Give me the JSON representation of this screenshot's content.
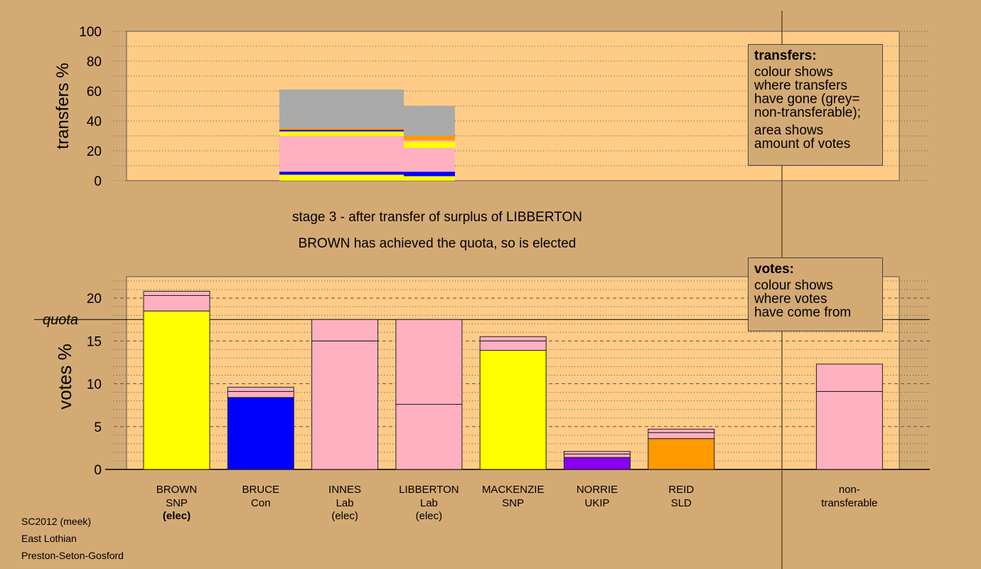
{
  "chart_data": [
    {
      "type": "bar",
      "subtype": "stacked-transfers",
      "ylabel": "transfers %",
      "ylim": [
        0,
        100
      ],
      "yticks": [
        0,
        20,
        40,
        60,
        80,
        100
      ],
      "colors": {
        "SNP": "#ffff00",
        "Con": "#0000ff",
        "Lab": "#ffb0c0",
        "UKIP": "#8800ee",
        "SLD": "#ff9900",
        "non-transferable": "#aaaaaa"
      },
      "blocks": [
        {
          "segments": [
            {
              "party": "SNP",
              "value": 4
            },
            {
              "party": "Con",
              "value": 2
            },
            {
              "party": "Lab",
              "value": 24
            },
            {
              "party": "SNP",
              "value": 3
            },
            {
              "party": "Con",
              "value": 1
            },
            {
              "party": "SLD",
              "value": 1
            },
            {
              "party": "non-transferable",
              "value": 26
            }
          ]
        },
        {
          "segments": [
            {
              "party": "SNP",
              "value": 3
            },
            {
              "party": "Con",
              "value": 3
            },
            {
              "party": "Lab",
              "value": 16
            },
            {
              "party": "SNP",
              "value": 4
            },
            {
              "party": "Lab",
              "value": 1
            },
            {
              "party": "SLD",
              "value": 3
            },
            {
              "party": "non-transferable",
              "value": 20
            }
          ]
        }
      ]
    },
    {
      "type": "bar",
      "subtype": "stacked-votes",
      "ylabel": "votes %",
      "ylim": [
        0,
        22.5
      ],
      "yticks": [
        0,
        5,
        10,
        15,
        20
      ],
      "quota": 17.5,
      "quota_label": "quota",
      "categories": [
        {
          "name": "BROWN",
          "party": "SNP",
          "status": "(elec)"
        },
        {
          "name": "BRUCE",
          "party": "Con",
          "status": ""
        },
        {
          "name": "INNES",
          "party": "Lab",
          "status": "(elec)"
        },
        {
          "name": "LIBBERTON",
          "party": "Lab",
          "status": "(elec)"
        },
        {
          "name": "MACKENZIE",
          "party": "SNP",
          "status": ""
        },
        {
          "name": "NORRIE",
          "party": "UKIP",
          "status": ""
        },
        {
          "name": "REID",
          "party": "SLD",
          "status": ""
        },
        {
          "name": "non-\ntransferable",
          "party": "",
          "status": ""
        }
      ],
      "bars": [
        {
          "segments": [
            {
              "color": "#ffff00",
              "value": 18.5
            },
            {
              "color": "#ffb0c0",
              "value": 1.8
            },
            {
              "color": "#ffb0c0",
              "value": 0.5
            }
          ]
        },
        {
          "segments": [
            {
              "color": "#0000ff",
              "value": 8.4
            },
            {
              "color": "#ffb0c0",
              "value": 0.7
            },
            {
              "color": "#ffb0c0",
              "value": 0.5
            }
          ]
        },
        {
          "segments": [
            {
              "color": "#ffb0c0",
              "value": 15.0
            },
            {
              "color": "#ffb0c0",
              "value": 2.5
            }
          ]
        },
        {
          "segments": [
            {
              "color": "#ffb0c0",
              "value": 7.6
            },
            {
              "color": "#ffb0c0",
              "value": 9.9
            }
          ]
        },
        {
          "segments": [
            {
              "color": "#ffff00",
              "value": 13.9
            },
            {
              "color": "#ffb0c0",
              "value": 1.1
            },
            {
              "color": "#ffb0c0",
              "value": 0.5
            }
          ]
        },
        {
          "segments": [
            {
              "color": "#8800ee",
              "value": 1.4
            },
            {
              "color": "#ffb0c0",
              "value": 0.4
            },
            {
              "color": "#ffb0c0",
              "value": 0.3
            }
          ]
        },
        {
          "segments": [
            {
              "color": "#ff9900",
              "value": 3.6
            },
            {
              "color": "#ffb0c0",
              "value": 0.7
            },
            {
              "color": "#ffb0c0",
              "value": 0.4
            }
          ]
        },
        null,
        {
          "segments": [
            {
              "color": "#ffb0c0",
              "value": 9.1
            },
            {
              "color": "#ffb0c0",
              "value": 3.2
            }
          ]
        }
      ]
    }
  ],
  "captions": {
    "stage": "stage 3 - after transfer of surplus of LIBBERTON",
    "elected": "BROWN has achieved the quota, so is elected"
  },
  "legend_transfers": {
    "title": "transfers:",
    "line1": "colour shows",
    "line2": "where transfers",
    "line3": "have gone (grey=",
    "line4": "non-transferable);",
    "line5": "area shows",
    "line6": "amount of votes"
  },
  "legend_votes": {
    "title": "votes:",
    "line1": "colour shows",
    "line2": "where votes",
    "line3": "have come from"
  },
  "footer": {
    "line1": "SC2012 (meek)",
    "line2": "East Lothian",
    "line3": "Preston-Seton-Gosford"
  }
}
